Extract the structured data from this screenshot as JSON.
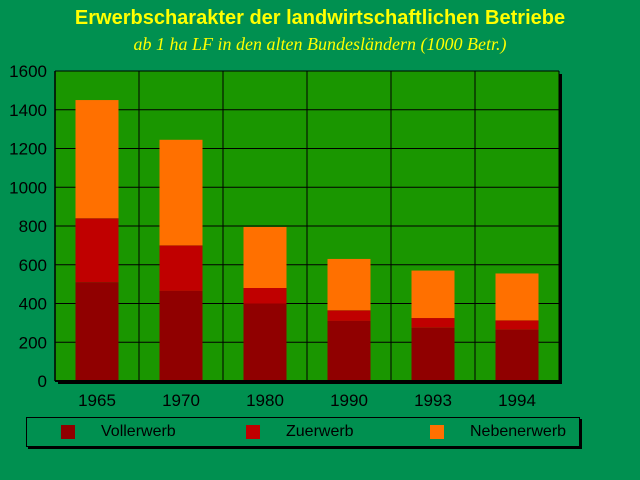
{
  "colors": {
    "background": "#009050",
    "plot": "#1a9600",
    "title": "#ffff00",
    "vollerwerb": "#900000",
    "zuerwerb": "#c00000",
    "nebenerwerb": "#ff7000"
  },
  "chart_data": {
    "type": "bar",
    "stacked": true,
    "title": "Erwerbscharakter der landwirtschaftlichen Betriebe",
    "subtitle": "ab 1 ha LF in den alten Bundesländern (1000 Betr.)",
    "categories": [
      "1965",
      "1970",
      "1980",
      "1990",
      "1993",
      "1994"
    ],
    "series": [
      {
        "name": "Vollerwerb",
        "color": "#900000",
        "values": [
          510,
          465,
          400,
          310,
          275,
          265
        ]
      },
      {
        "name": "Zuerwerb",
        "color": "#c00000",
        "values": [
          330,
          235,
          80,
          55,
          50,
          48
        ]
      },
      {
        "name": "Nebenerwerb",
        "color": "#ff7000",
        "values": [
          610,
          545,
          315,
          265,
          245,
          242
        ]
      }
    ],
    "ylim": [
      0,
      1600
    ],
    "yticks": [
      "0",
      "200",
      "400",
      "600",
      "800",
      "1000",
      "1200",
      "1400",
      "1600"
    ],
    "grid": true,
    "legend_position": "bottom"
  }
}
